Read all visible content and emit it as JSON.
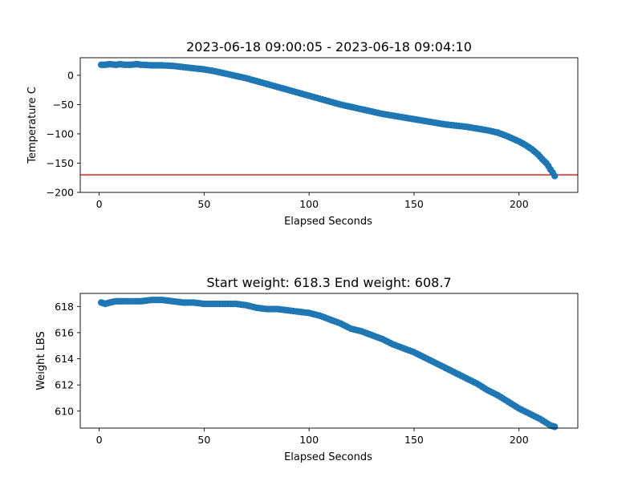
{
  "chart_data": [
    {
      "type": "scatter",
      "title": "2023-06-18 09:00:05 - 2023-06-18 09:04:10",
      "xlabel": "Elapsed Seconds",
      "ylabel": "Temperature C",
      "xlim": [
        -9,
        228
      ],
      "ylim": [
        -200,
        30
      ],
      "xticks": [
        0,
        50,
        100,
        150,
        200
      ],
      "yticks": [
        0,
        -50,
        -100,
        -150,
        -200
      ],
      "grid": false,
      "marker_color": "#1f77b4",
      "reference_line": {
        "orientation": "horizontal",
        "y": -170,
        "color": "#d62728"
      },
      "x": [
        1,
        3,
        5,
        8,
        10,
        12,
        15,
        18,
        20,
        25,
        30,
        35,
        40,
        45,
        50,
        55,
        60,
        65,
        70,
        75,
        80,
        85,
        90,
        95,
        100,
        105,
        110,
        115,
        120,
        125,
        130,
        135,
        140,
        145,
        150,
        155,
        160,
        165,
        170,
        175,
        180,
        185,
        190,
        195,
        200,
        203,
        206,
        209,
        211,
        213,
        214,
        215,
        216,
        217
      ],
      "y": [
        18,
        18,
        19,
        18,
        19,
        18,
        18,
        19,
        18,
        17,
        17,
        16,
        14,
        12,
        10,
        7,
        3,
        -1,
        -5,
        -10,
        -15,
        -20,
        -25,
        -30,
        -35,
        -40,
        -45,
        -50,
        -54,
        -58,
        -62,
        -66,
        -69,
        -72,
        -75,
        -78,
        -81,
        -84,
        -86,
        -88,
        -91,
        -94,
        -98,
        -105,
        -113,
        -119,
        -126,
        -135,
        -143,
        -150,
        -155,
        -161,
        -166,
        -172
      ]
    },
    {
      "type": "scatter",
      "title": "Start weight: 618.3 End weight: 608.7",
      "xlabel": "Elapsed Seconds",
      "ylabel": "Weight LBS",
      "xlim": [
        -9,
        228
      ],
      "ylim": [
        608.7,
        619.0
      ],
      "xticks": [
        0,
        50,
        100,
        150,
        200
      ],
      "yticks": [
        618,
        616,
        614,
        612,
        610
      ],
      "grid": false,
      "marker_color": "#1f77b4",
      "x": [
        1,
        3,
        5,
        8,
        10,
        15,
        20,
        25,
        30,
        35,
        40,
        45,
        50,
        55,
        60,
        65,
        70,
        75,
        80,
        85,
        90,
        95,
        100,
        105,
        110,
        115,
        120,
        125,
        130,
        135,
        140,
        145,
        150,
        155,
        160,
        165,
        170,
        175,
        180,
        185,
        190,
        195,
        200,
        205,
        210,
        215,
        217
      ],
      "y": [
        618.3,
        618.2,
        618.3,
        618.4,
        618.4,
        618.4,
        618.4,
        618.5,
        618.5,
        618.4,
        618.3,
        618.3,
        618.2,
        618.2,
        618.2,
        618.2,
        618.1,
        617.9,
        617.8,
        617.8,
        617.7,
        617.6,
        617.5,
        617.3,
        617.0,
        616.7,
        616.3,
        616.1,
        615.8,
        615.5,
        615.1,
        614.8,
        614.5,
        614.1,
        613.7,
        613.3,
        612.9,
        612.5,
        612.1,
        611.6,
        611.2,
        610.7,
        610.2,
        609.8,
        609.4,
        608.9,
        608.8
      ]
    }
  ]
}
